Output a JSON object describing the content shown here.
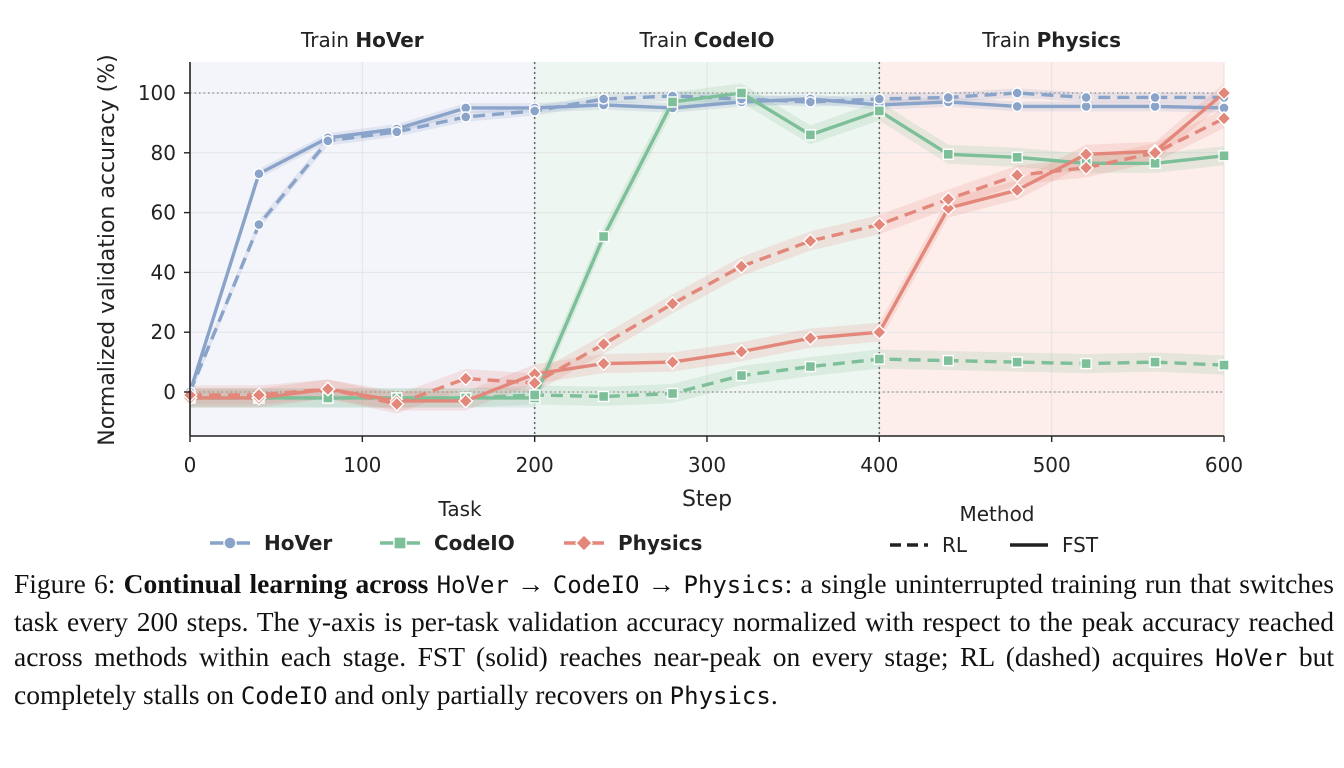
{
  "chart_data": {
    "type": "line",
    "xlabel": "Step",
    "ylabel": "Normalized validation accuracy (%)",
    "xlim": [
      0,
      600
    ],
    "ylim": [
      -15,
      111
    ],
    "xticks": [
      0,
      100,
      200,
      300,
      400,
      500,
      600
    ],
    "yticks": [
      0,
      20,
      40,
      60,
      80,
      100
    ],
    "grid": true,
    "stages": [
      {
        "prefix": "Train ",
        "name": "HoVer",
        "range": [
          0,
          200
        ],
        "color": "#f3f5fa"
      },
      {
        "prefix": "Train ",
        "name": "CodeIO",
        "range": [
          200,
          400
        ],
        "color": "#eef6f1"
      },
      {
        "prefix": "Train ",
        "name": "Physics",
        "range": [
          400,
          600
        ],
        "color": "#fdeeeb"
      }
    ],
    "legend": {
      "task_title": "Task",
      "method_title": "Method",
      "tasks": [
        "HoVer",
        "CodeIO",
        "Physics"
      ],
      "methods": [
        {
          "label": "RL",
          "style": "dashed"
        },
        {
          "label": "FST",
          "style": "solid"
        }
      ]
    },
    "x": [
      0,
      40,
      80,
      120,
      160,
      200,
      240,
      280,
      320,
      360,
      400,
      440,
      480,
      520,
      560,
      600
    ],
    "series": [
      {
        "name": "HoVer",
        "method": "FST",
        "color": "#8aa3c9",
        "marker": "circle",
        "values": [
          0,
          73,
          85,
          88,
          95,
          95,
          96,
          95,
          97,
          98,
          96,
          97,
          95.5,
          95.5,
          95.5,
          95
        ]
      },
      {
        "name": "HoVer",
        "method": "RL",
        "color": "#8aa3c9",
        "marker": "circle",
        "values": [
          0,
          56,
          84,
          87,
          92,
          94,
          98,
          99,
          98,
          97,
          98,
          98.5,
          100,
          98.5,
          98.5,
          98.5
        ]
      },
      {
        "name": "CodeIO",
        "method": "FST",
        "color": "#7dbf98",
        "marker": "square",
        "values": [
          -2,
          -2,
          -2,
          -2,
          -2,
          -2,
          52,
          97,
          100,
          86,
          94,
          79.5,
          78.5,
          76.5,
          76.5,
          79
        ]
      },
      {
        "name": "CodeIO",
        "method": "RL",
        "color": "#7dbf98",
        "marker": "square",
        "values": [
          -2,
          -2,
          -2,
          -2,
          -2,
          -1,
          -1.5,
          -0.5,
          5.5,
          8.5,
          11,
          10.5,
          10,
          9.5,
          10,
          9
        ]
      },
      {
        "name": "Physics",
        "method": "FST",
        "color": "#e2877a",
        "marker": "diamond",
        "values": [
          -2,
          -2,
          1,
          -3,
          -3,
          6,
          9.5,
          10,
          13.5,
          18,
          20,
          61.5,
          67.5,
          79.5,
          80.5,
          100
        ]
      },
      {
        "name": "Physics",
        "method": "RL",
        "color": "#e2877a",
        "marker": "diamond",
        "values": [
          -1,
          -1,
          1,
          -4,
          4.5,
          3,
          16,
          29.5,
          42,
          50.5,
          56,
          64.5,
          72.5,
          75,
          80,
          91.5
        ]
      }
    ]
  },
  "caption": {
    "label": "Figure 6: ",
    "bold_title": "Continual learning across ",
    "seq_1": "HoVer",
    "arrow_1": " → ",
    "seq_2": "CodeIO",
    "arrow_2": " → ",
    "seq_3": "Physics",
    "text_1": ": a single uninterrupted training run that switches task every 200 steps. The y-axis is per-task validation accuracy normalized with respect to the peak accuracy reached across methods within each stage. FST (solid) reaches near-peak on every stage; RL (dashed) acquires ",
    "mono_hover": "HoVer",
    "text_2": " but completely stalls on ",
    "mono_codeio": "CodeIO",
    "text_3": " and only partially recovers on ",
    "mono_physics": "Physics",
    "text_4": "."
  }
}
